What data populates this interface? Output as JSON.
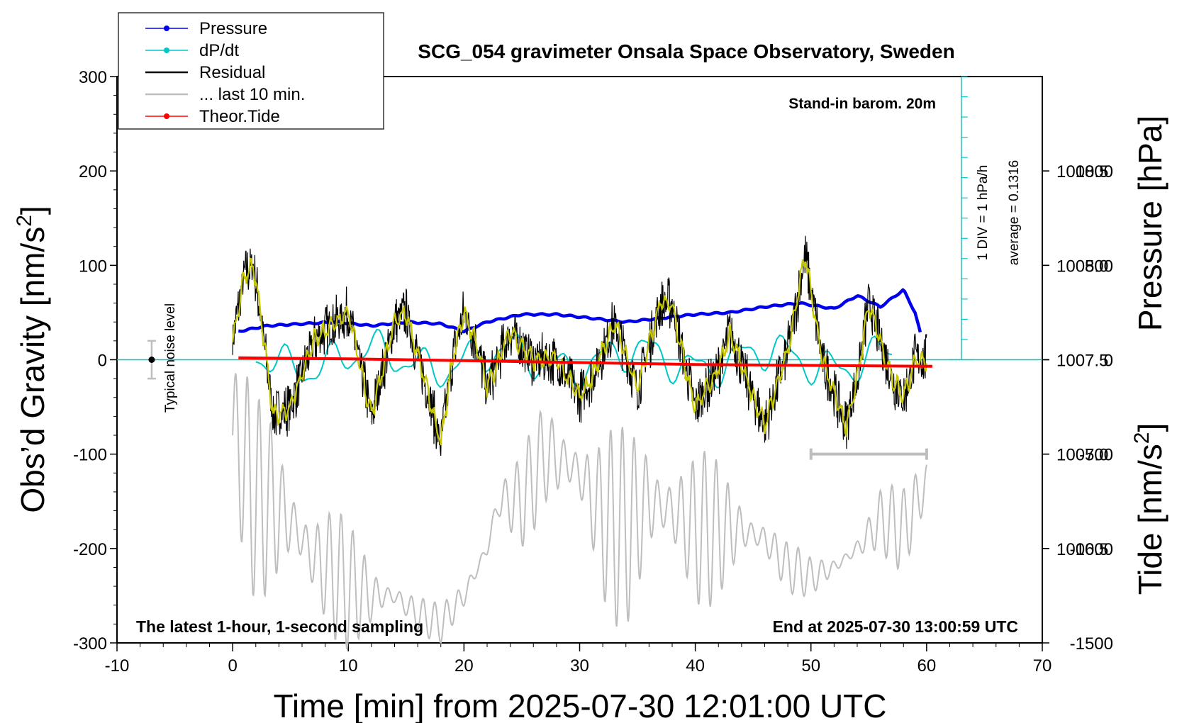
{
  "chart_data": {
    "type": "line",
    "title": "SCG_054 gravimeter Onsala Space Observatory, Sweden",
    "xlabel": "Time [min] from 2025-07-30 12:01:00 UTC",
    "ylabel_left": "Obs’d Gravity [nm/s",
    "ylabel_left_sup": "2",
    "ylabel_left_close": "]",
    "ylabel_right_top": "Pressure [hPa]",
    "ylabel_right_bottom": "Tide [nm/s",
    "ylabel_right_bottom_sup": "2",
    "ylabel_right_bottom_close": "]",
    "xlim": [
      -10,
      70
    ],
    "ylim": [
      -300,
      300
    ],
    "xticks": [
      -10,
      0,
      10,
      20,
      30,
      40,
      50,
      60,
      70
    ],
    "xtick_labels": [
      "-10",
      "0",
      "10",
      "20",
      "30",
      "40",
      "50",
      "60",
      "70"
    ],
    "yticks": [
      300,
      200,
      100,
      0,
      -100,
      -200,
      -300
    ],
    "ytick_labels": [
      "300",
      "200",
      "100",
      "0",
      "-100",
      "-200",
      "-300"
    ],
    "pressure_axis": {
      "ticks": [
        1008.5,
        1008.0,
        1007.5,
        1007.0,
        1006.5
      ],
      "tick_labels": [
        "1008.5",
        "1008.0",
        "1007.5",
        "1007.0",
        "1006.5"
      ],
      "range_hpa": [
        1006.0,
        1009.0
      ]
    },
    "tide_axis": {
      "ticks": [
        1000,
        500,
        0,
        -500,
        -1000,
        -1500
      ],
      "tick_labels": [
        "1000",
        "500",
        "0",
        "-500",
        "-1000",
        "-1500"
      ],
      "range": [
        -1500,
        1500
      ]
    },
    "legend": {
      "placement": "top-left",
      "entries": [
        {
          "label": "Pressure",
          "color": "#0000ee",
          "marker": true
        },
        {
          "label": "dP/dt",
          "color": "#00c8c8",
          "marker": true
        },
        {
          "label": "Residual",
          "color": "#000000",
          "marker": false
        },
        {
          "label": "... last 10 min.",
          "color": "#bebebe",
          "marker": false
        },
        {
          "label": "Theor.Tide",
          "color": "#ff0000",
          "marker": true
        }
      ]
    },
    "annotations": {
      "barometer": "Stand-in barom. 20m",
      "bottom_left": "The latest 1-hour, 1-second sampling",
      "bottom_right": "End at 2025-07-30 13:00:59 UTC",
      "noise": "Typical noise level",
      "dpdt_scale": "1 DIV = 1 hPa/h",
      "dpdt_average": "average = 0.1316"
    },
    "noise_level": {
      "x": -7,
      "center": 0,
      "half_range": 20
    },
    "last_10min_bar": {
      "x": [
        50,
        60
      ],
      "y": -100
    },
    "series": [
      {
        "name": "Pressure",
        "color": "#0000ee",
        "axis": "pressure_hpa",
        "points": [
          [
            0.5,
            1007.65
          ],
          [
            3,
            1007.68
          ],
          [
            6,
            1007.69
          ],
          [
            9,
            1007.7
          ],
          [
            12,
            1007.68
          ],
          [
            15,
            1007.7
          ],
          [
            18,
            1007.69
          ],
          [
            20,
            1007.65
          ],
          [
            22,
            1007.7
          ],
          [
            25,
            1007.74
          ],
          [
            28,
            1007.74
          ],
          [
            31,
            1007.72
          ],
          [
            34,
            1007.7
          ],
          [
            37,
            1007.72
          ],
          [
            40,
            1007.74
          ],
          [
            43,
            1007.75
          ],
          [
            46,
            1007.78
          ],
          [
            49,
            1007.8
          ],
          [
            52,
            1007.77
          ],
          [
            54,
            1007.84
          ],
          [
            56,
            1007.78
          ],
          [
            58,
            1007.87
          ],
          [
            59,
            1007.75
          ],
          [
            59.5,
            1007.63
          ]
        ]
      },
      {
        "name": "dP/dt",
        "color": "#00c8c8",
        "axis": "dpdt_div",
        "zero_line_hpa": 1007.5,
        "x_range": [
          2,
          57
        ],
        "points_count": 221
      },
      {
        "name": "Residual",
        "color": "#000000",
        "axis": "gravity",
        "envelope": [
          [
            0,
            20
          ],
          [
            1,
            90
          ],
          [
            1.8,
            100
          ],
          [
            2.5,
            40
          ],
          [
            3.5,
            -60
          ],
          [
            5,
            -50
          ],
          [
            7,
            20
          ],
          [
            10,
            50
          ],
          [
            12,
            -60
          ],
          [
            14,
            40
          ],
          [
            15,
            50
          ],
          [
            17,
            -40
          ],
          [
            18,
            -90
          ],
          [
            19,
            0
          ],
          [
            20,
            50
          ],
          [
            21,
            20
          ],
          [
            22,
            -30
          ],
          [
            24,
            30
          ],
          [
            26,
            0
          ],
          [
            28,
            0
          ],
          [
            30,
            -40
          ],
          [
            31,
            -20
          ],
          [
            33,
            40
          ],
          [
            35,
            -30
          ],
          [
            37,
            60
          ],
          [
            38,
            60
          ],
          [
            39,
            0
          ],
          [
            40,
            -50
          ],
          [
            42,
            -10
          ],
          [
            43,
            30
          ],
          [
            45,
            -40
          ],
          [
            46,
            -70
          ],
          [
            48,
            10
          ],
          [
            49.5,
            110
          ],
          [
            51,
            0
          ],
          [
            53,
            -70
          ],
          [
            54,
            -20
          ],
          [
            55,
            60
          ],
          [
            57,
            -20
          ],
          [
            58,
            -40
          ],
          [
            59,
            0
          ],
          [
            60,
            0
          ]
        ],
        "noise_amplitude": 30
      },
      {
        "name": "Smoothed residual",
        "color": "#c8c800",
        "axis": "gravity"
      },
      {
        "name": "... last 10 min.",
        "color": "#bebebe",
        "axis": "gravity",
        "envelope": [
          [
            0,
            -80
          ],
          [
            1,
            -110
          ],
          [
            2,
            -150
          ],
          [
            3,
            -150
          ],
          [
            5,
            -170
          ],
          [
            7,
            -210
          ],
          [
            10,
            -240
          ],
          [
            12,
            -250
          ],
          [
            14,
            -250
          ],
          [
            16,
            -270
          ],
          [
            18,
            -280
          ],
          [
            20,
            -250
          ],
          [
            22,
            -200
          ],
          [
            23,
            -150
          ],
          [
            25,
            -150
          ],
          [
            27,
            -100
          ],
          [
            29,
            -110
          ],
          [
            30,
            -120
          ],
          [
            32,
            -170
          ],
          [
            34,
            -180
          ],
          [
            36,
            -150
          ],
          [
            38,
            -160
          ],
          [
            40,
            -180
          ],
          [
            42,
            -180
          ],
          [
            44,
            -180
          ],
          [
            46,
            -190
          ],
          [
            48,
            -220
          ],
          [
            50,
            -230
          ],
          [
            52,
            -220
          ],
          [
            54,
            -200
          ],
          [
            56,
            -170
          ],
          [
            58,
            -180
          ],
          [
            60,
            -130
          ]
        ],
        "oscillation_amplitude_min": 20,
        "oscillation_amplitude_max": 110
      },
      {
        "name": "Theor.Tide",
        "color": "#ff0000",
        "axis": "tide",
        "points": [
          [
            0.5,
            10
          ],
          [
            10,
            5
          ],
          [
            20,
            -5
          ],
          [
            30,
            -15
          ],
          [
            40,
            -25
          ],
          [
            50,
            -30
          ],
          [
            60.5,
            -35
          ]
        ]
      }
    ]
  }
}
